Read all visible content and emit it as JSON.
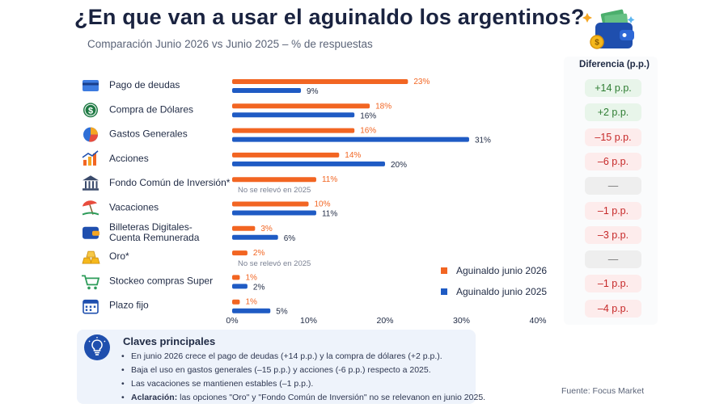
{
  "header": {
    "title": "¿En que van a usar el aguinaldo los argentinos?",
    "subtitle": "Comparación Junio 2026 vs Junio 2025 – % de respuestas"
  },
  "colors": {
    "series_2026": "#f26522",
    "series_2025": "#1f5bc4",
    "diff_positive_bg": "#e8f5ea",
    "diff_positive_text": "#2e7d32",
    "diff_negative_bg": "#fdecec",
    "diff_negative_text": "#c62828",
    "diff_neutral_bg": "#eeeeee",
    "diff_neutral_text": "#777777"
  },
  "chart_data": {
    "type": "bar",
    "orientation": "horizontal",
    "categories": [
      "Pago de deudas",
      "Compra de Dólares",
      "Gastos Generales",
      "Acciones",
      "Fondo Común de Inversión*",
      "Vacaciones",
      "Billeteras Digitales- Cuenta Remunerada",
      "Oro*",
      "Stockeo compras Super",
      "Plazo fijo"
    ],
    "category_icons": [
      "credit-card-icon",
      "dollar-coin-icon",
      "pie-chart-icon",
      "rising-chart-icon",
      "bank-building-icon",
      "beach-umbrella-icon",
      "wallet-icon",
      "gold-bars-icon",
      "shopping-cart-icon",
      "calendar-icon"
    ],
    "series": [
      {
        "name": "Aguinaldo junio 2026",
        "values": [
          23,
          18,
          16,
          14,
          11,
          10,
          3,
          2,
          1,
          1
        ],
        "labels": [
          "23%",
          "18%",
          "16%",
          "14%",
          "11%",
          "10%",
          "3%",
          "2%",
          "1%",
          "1%"
        ]
      },
      {
        "name": "Aguinaldo junio 2025",
        "values": [
          9,
          16,
          31,
          20,
          null,
          11,
          6,
          null,
          2,
          5
        ],
        "labels": [
          "9%",
          "16%",
          "31%",
          "20%",
          "",
          "11%",
          "6%",
          "",
          "2%",
          "5%"
        ]
      }
    ],
    "not_surveyed_note": "No se relevó en 2025",
    "xlim": [
      0,
      40
    ],
    "x_ticks": [
      "0%",
      "10%",
      "20%",
      "30%",
      "40%"
    ],
    "legend_position": "right",
    "grid": false
  },
  "differences": {
    "header": "Diferencia (p.p.)",
    "items": [
      {
        "label": "+14 p.p.",
        "sign": "positive"
      },
      {
        "label": "+2 p.p.",
        "sign": "positive"
      },
      {
        "label": "–15 p.p.",
        "sign": "negative"
      },
      {
        "label": "–6 p.p.",
        "sign": "negative"
      },
      {
        "label": "—",
        "sign": "neutral"
      },
      {
        "label": "–1 p.p.",
        "sign": "negative"
      },
      {
        "label": "–3 p.p.",
        "sign": "negative"
      },
      {
        "label": "—",
        "sign": "neutral"
      },
      {
        "label": "–1 p.p.",
        "sign": "negative"
      },
      {
        "label": "–4 p.p.",
        "sign": "negative"
      }
    ]
  },
  "key_points": {
    "icon": "lightbulb-icon",
    "title": "Claves principales",
    "bullets": [
      "En junio 2026 crece el pago de deudas (+14 p.p.) y la compra de dólares (+2 p.p.).",
      "Baja el uso en gastos generales (–15 p.p.) y acciones (-6 p.p.) respecto a 2025.",
      "Las vacaciones se mantienen estables (–1 p.p.)."
    ],
    "clarification_label": "Aclaración:",
    "clarification_text": " las opciones \"Oro\" y \"Fondo Común de Inversión\" no se relevanon en junio 2025."
  },
  "footer": {
    "source": "Fuente: Focus Market"
  }
}
